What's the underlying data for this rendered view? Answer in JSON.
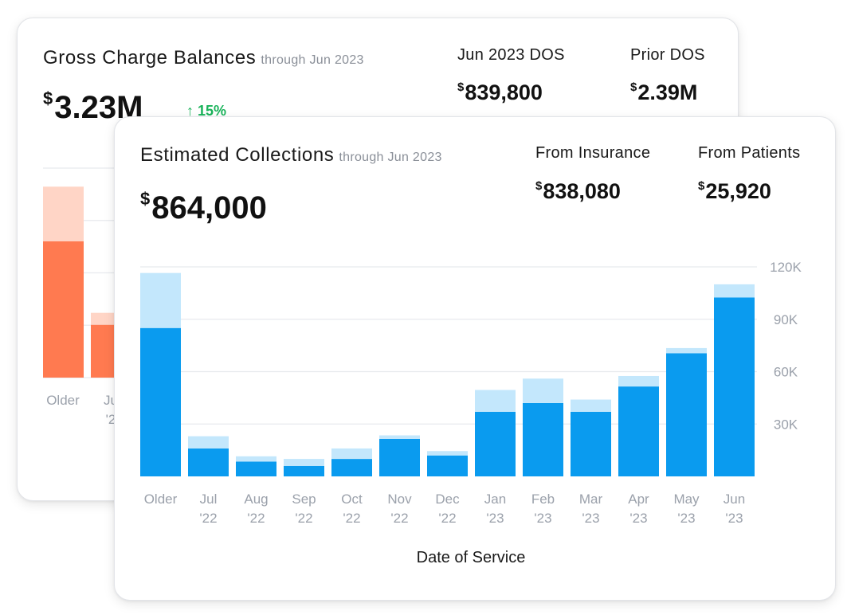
{
  "gross": {
    "title": "Gross Charge Balances",
    "subtitle": "through Jun 2023",
    "total": "3.23M",
    "currency": "$",
    "change": "↑ 15%",
    "stat1_label": "Jun 2023 DOS",
    "stat1_value": "839,800",
    "stat2_label": "Prior DOS",
    "stat2_value": "2.39M",
    "x_labels": [
      [
        "Older",
        ""
      ],
      [
        "Ju",
        "'2"
      ]
    ],
    "colors": {
      "dark": "#ff7a50",
      "light": "#ffd5c6"
    }
  },
  "collections": {
    "title": "Estimated Collections",
    "subtitle": "through Jun 2023",
    "total": "864,000",
    "currency": "$",
    "stat1_label": "From Insurance",
    "stat1_value": "838,080",
    "stat2_label": "From Patients",
    "stat2_value": "25,920",
    "colors": {
      "insurance": "#0a9bef",
      "patients": "#c3e7fc"
    }
  },
  "chart_data": [
    {
      "type": "bar",
      "title": "Gross Charge Balances",
      "stacked": true,
      "categories": [
        "Older",
        "Jul '22"
      ],
      "series": [
        {
          "values": [
            80,
            31
          ]
        },
        {
          "values": [
            32,
            7
          ]
        }
      ],
      "partial": true
    },
    {
      "type": "bar",
      "title": "Estimated Collections",
      "xlabel": "Date of Service",
      "ylabel": "",
      "stacked": true,
      "y_ticks": [
        "30K",
        "60K",
        "90K",
        "120K"
      ],
      "y_tick_values": [
        30000,
        60000,
        90000,
        120000
      ],
      "ylim": [
        0,
        120000
      ],
      "axis_position": "right",
      "grid": true,
      "categories": [
        [
          "Older",
          ""
        ],
        [
          "Jul",
          "'22"
        ],
        [
          "Aug",
          "'22"
        ],
        [
          "Sep",
          "'22"
        ],
        [
          "Oct",
          "'22"
        ],
        [
          "Nov",
          "'22"
        ],
        [
          "Dec",
          "'22"
        ],
        [
          "Jan",
          "'23"
        ],
        [
          "Feb",
          "'23"
        ],
        [
          "Mar",
          "'23"
        ],
        [
          "Apr",
          "'23"
        ],
        [
          "May",
          "'23"
        ],
        [
          "Jun",
          "'23"
        ]
      ],
      "series": [
        {
          "values": [
            85000,
            16000,
            8500,
            6000,
            10000,
            21500,
            12000,
            37000,
            42000,
            37000,
            51500,
            70500,
            102500
          ]
        },
        {
          "values": [
            31500,
            7000,
            3000,
            4000,
            6000,
            2000,
            2500,
            12500,
            14000,
            7000,
            6000,
            3000,
            7500
          ]
        }
      ]
    }
  ]
}
